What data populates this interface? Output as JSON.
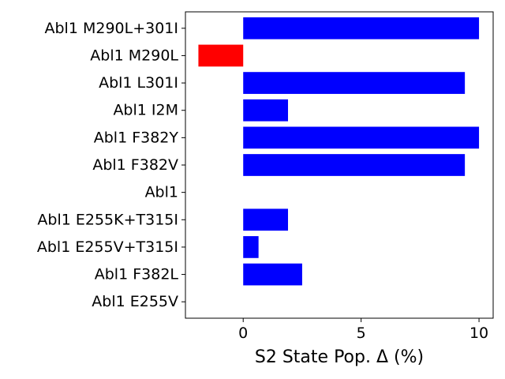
{
  "chart_data": {
    "type": "bar",
    "orientation": "horizontal",
    "title": "",
    "xlabel": "S2 State Pop. Δ (%)",
    "ylabel": "",
    "xlim": [
      -2.45,
      10.6
    ],
    "xticks": [
      0,
      5,
      10
    ],
    "xtick_labels": [
      "0",
      "5",
      "10"
    ],
    "grid": false,
    "categories": [
      "Abl1 M290L+301I",
      "Abl1 M290L",
      "Abl1 L301I",
      "Abl1 I2M",
      "Abl1 F382Y",
      "Abl1 F382V",
      "Abl1",
      "Abl1 E255K+T315I",
      "Abl1 E255V+T315I",
      "Abl1 F382L",
      "Abl1 E255V"
    ],
    "values": [
      10.0,
      -1.9,
      9.4,
      1.9,
      10.0,
      9.4,
      0.0,
      1.9,
      0.65,
      2.5,
      0.0
    ],
    "colors": {
      "positive": "#0000ff",
      "negative": "#ff0000"
    }
  }
}
